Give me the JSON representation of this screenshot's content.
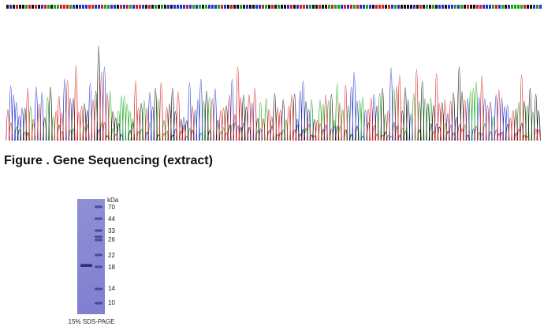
{
  "figure": {
    "caption": "Figure . Gene Sequencing (extract)"
  },
  "gel": {
    "unit": "kDa",
    "markers": [
      "70",
      "44",
      "33",
      "26",
      "22",
      "18",
      "14",
      "10"
    ],
    "caption": "15% SDS-PAGE"
  }
}
